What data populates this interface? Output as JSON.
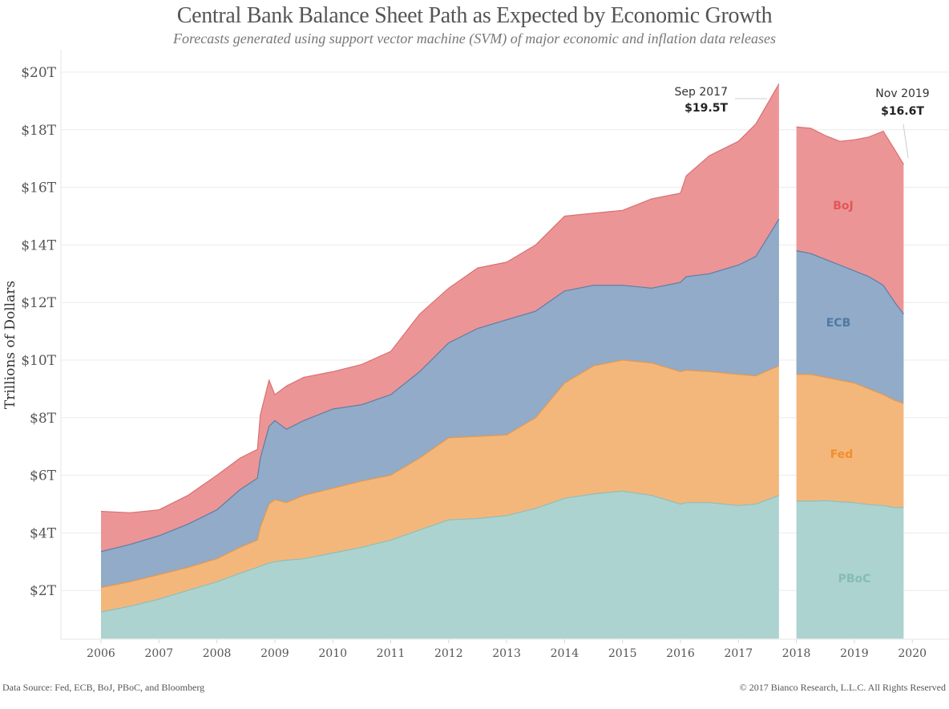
{
  "chart_data": {
    "type": "area",
    "stacked": true,
    "title": "Central Bank Balance Sheet Path as Expected by Economic Growth",
    "subtitle": "Forecasts generated using support vector machine (SVM) of major economic and inflation data releases",
    "xlabel": "",
    "ylabel": "Trillions of Dollars",
    "ylim": [
      0.33,
      20.6
    ],
    "xlim": [
      2005.65,
      2020.3
    ],
    "grid": true,
    "legend": "inline labels on right (forecast) segment",
    "y_ticks": [
      {
        "value": 2,
        "label": "$2T"
      },
      {
        "value": 4,
        "label": "$4T"
      },
      {
        "value": 6,
        "label": "$6T"
      },
      {
        "value": 8,
        "label": "$8T"
      },
      {
        "value": 10,
        "label": "$10T"
      },
      {
        "value": 12,
        "label": "$12T"
      },
      {
        "value": 14,
        "label": "$14T"
      },
      {
        "value": 16,
        "label": "$16T"
      },
      {
        "value": 18,
        "label": "$18T"
      },
      {
        "value": 20,
        "label": "$20T"
      }
    ],
    "x_ticks": [
      "2006",
      "2007",
      "2008",
      "2009",
      "2010",
      "2011",
      "2012",
      "2013",
      "2014",
      "2015",
      "2016",
      "2017",
      "2018",
      "2019",
      "2020"
    ],
    "series_order_bottom_to_top": [
      "PBoC",
      "Fed",
      "ECB",
      "BoJ"
    ],
    "colors": {
      "PBoC": {
        "fill": "#acd3cf",
        "line": "#8fbfba",
        "label": "#86bcb6"
      },
      "Fed": {
        "fill": "#f4b77b",
        "line": "#e8994c",
        "label": "#f28e2b"
      },
      "ECB": {
        "fill": "#91abc8",
        "line": "#5b7ea8",
        "label": "#4e79a7"
      },
      "BoJ": {
        "fill": "#ec9596",
        "line": "#dc6f72",
        "label": "#e15759"
      }
    },
    "segments": [
      {
        "name": "historical",
        "x": [
          2006.0,
          2006.5,
          2007.0,
          2007.5,
          2008.0,
          2008.4,
          2008.7,
          2008.75,
          2008.9,
          2009.0,
          2009.2,
          2009.5,
          2010.0,
          2010.5,
          2011.0,
          2011.5,
          2012.0,
          2012.5,
          2013.0,
          2013.5,
          2014.0,
          2014.5,
          2015.0,
          2015.5,
          2016.0,
          2016.1,
          2016.5,
          2017.0,
          2017.3,
          2017.7
        ],
        "cumulative": {
          "PBoC": [
            1.25,
            1.45,
            1.7,
            2.0,
            2.3,
            2.6,
            2.8,
            2.85,
            2.95,
            3.0,
            3.05,
            3.1,
            3.3,
            3.5,
            3.75,
            4.1,
            4.45,
            4.5,
            4.6,
            4.85,
            5.2,
            5.35,
            5.45,
            5.3,
            5.0,
            5.05,
            5.05,
            4.95,
            5.0,
            5.3
          ],
          "Fed": [
            2.1,
            2.3,
            2.55,
            2.8,
            3.1,
            3.5,
            3.75,
            4.2,
            5.0,
            5.15,
            5.05,
            5.3,
            5.55,
            5.8,
            6.0,
            6.6,
            7.3,
            7.35,
            7.4,
            8.0,
            9.2,
            9.8,
            10.0,
            9.9,
            9.6,
            9.65,
            9.6,
            9.5,
            9.45,
            9.8
          ],
          "ECB": [
            3.35,
            3.6,
            3.9,
            4.3,
            4.8,
            5.5,
            5.9,
            6.6,
            7.7,
            7.9,
            7.6,
            7.9,
            8.3,
            8.45,
            8.8,
            9.6,
            10.6,
            11.1,
            11.4,
            11.7,
            12.4,
            12.6,
            12.6,
            12.5,
            12.7,
            12.9,
            13.0,
            13.3,
            13.6,
            14.9
          ],
          "BoJ": [
            4.75,
            4.7,
            4.8,
            5.3,
            6.0,
            6.6,
            6.9,
            8.1,
            9.3,
            8.8,
            9.1,
            9.4,
            9.6,
            9.85,
            10.3,
            11.6,
            12.5,
            13.2,
            13.4,
            14.0,
            15.0,
            15.1,
            15.2,
            15.6,
            15.8,
            16.4,
            17.1,
            17.6,
            18.2,
            19.6
          ]
        }
      },
      {
        "name": "forecast",
        "x": [
          2018.0,
          2018.25,
          2018.5,
          2018.75,
          2019.0,
          2019.25,
          2019.5,
          2019.7,
          2019.85
        ],
        "cumulative": {
          "PBoC": [
            5.1,
            5.1,
            5.12,
            5.08,
            5.05,
            4.98,
            4.95,
            4.88,
            4.88
          ],
          "Fed": [
            9.5,
            9.5,
            9.4,
            9.3,
            9.2,
            9.0,
            8.8,
            8.6,
            8.5
          ],
          "ECB": [
            13.8,
            13.7,
            13.5,
            13.3,
            13.1,
            12.9,
            12.6,
            12.0,
            11.6
          ],
          "BoJ": [
            18.1,
            18.05,
            17.8,
            17.6,
            17.65,
            17.75,
            17.95,
            17.3,
            16.8
          ]
        }
      }
    ],
    "annotations": [
      {
        "date": "Sep 2017",
        "value": "$19.5T"
      },
      {
        "date": "Nov 2019",
        "value": "$16.6T"
      }
    ],
    "series_labels": [
      "BoJ",
      "ECB",
      "Fed",
      "PBoC"
    ]
  },
  "footer": {
    "source": "Data Source: Fed, ECB, BoJ, PBoC, and Bloomberg",
    "copyright": "© 2017 Bianco Research, L.L.C. All Rights Reserved"
  }
}
